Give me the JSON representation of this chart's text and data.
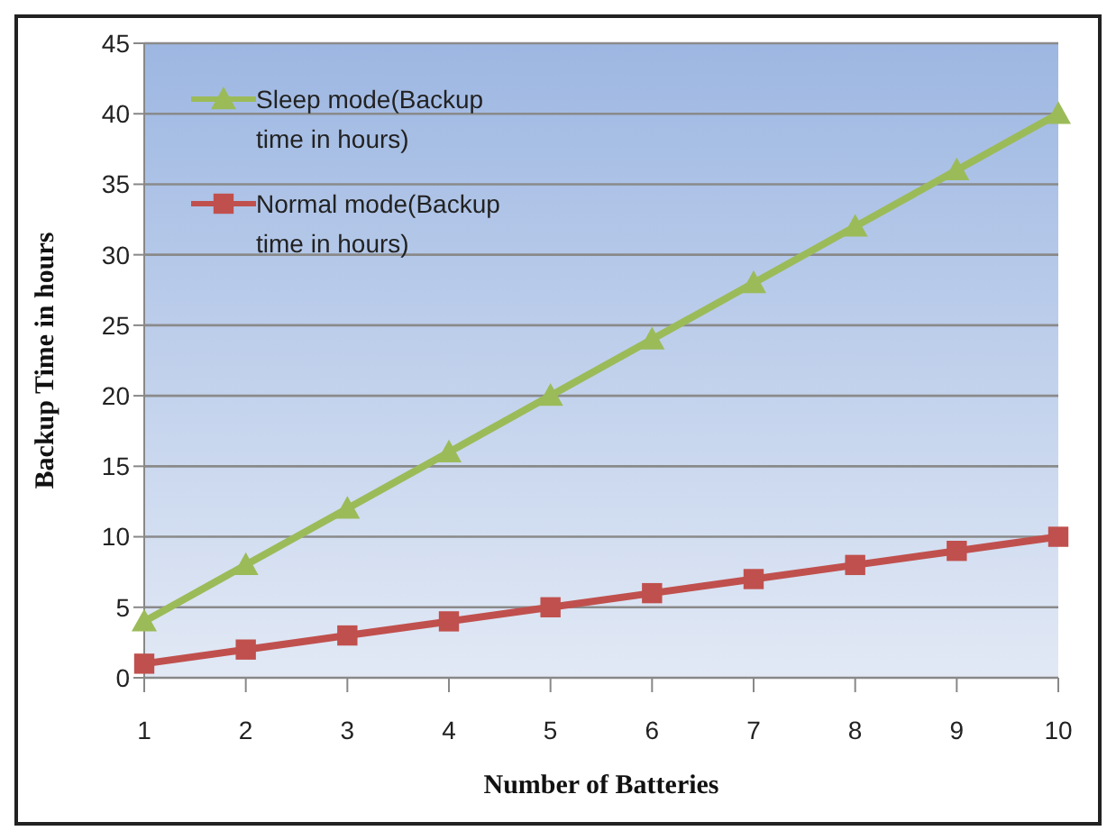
{
  "chart_data": {
    "type": "line",
    "xlabel": "Number of Batteries",
    "ylabel": "Backup Time in hours",
    "categories": [
      "1",
      "2",
      "3",
      "4",
      "5",
      "6",
      "7",
      "8",
      "9",
      "10"
    ],
    "series": [
      {
        "name": "Sleep mode(Backup time in hours)",
        "color": "#9bbb59",
        "marker": "triangle",
        "values": [
          4,
          8,
          12,
          16,
          20,
          24,
          28,
          32,
          36,
          40
        ]
      },
      {
        "name": "Normal mode(Backup time in hours)",
        "color": "#c0504d",
        "marker": "square",
        "values": [
          1,
          2,
          3,
          4,
          5,
          6,
          7,
          8,
          9,
          10
        ]
      }
    ],
    "ylim": [
      0,
      45
    ],
    "yticks": [
      0,
      5,
      10,
      15,
      20,
      25,
      30,
      35,
      40,
      45
    ],
    "grid": "y",
    "legend": "top left",
    "line_style": "solid"
  }
}
